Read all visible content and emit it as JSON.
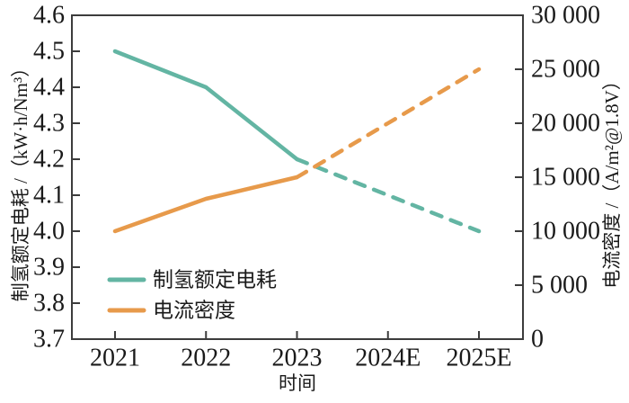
{
  "chart_data": {
    "type": "line",
    "title": "",
    "x_categories": [
      "2021",
      "2022",
      "2023",
      "2024E",
      "2025E"
    ],
    "xlabel": "时间",
    "ylabel_left": "制氢额定电耗 /（kW·h/Nm³）",
    "ylabel_right": "电流密度 /（A/m²@1.8V）",
    "ylim_left": [
      3.7,
      4.6
    ],
    "ylim_right": [
      0,
      30000
    ],
    "y_ticks_left": [
      "4.6",
      "4.5",
      "4.4",
      "4.3",
      "4.2",
      "4.1",
      "4.0",
      "3.9",
      "3.8",
      "3.7"
    ],
    "y_ticks_right": [
      "30 000",
      "25 000",
      "20 000",
      "15 000",
      "10 000",
      "5 000",
      "0"
    ],
    "grid": false,
    "legend_position": "lower-left",
    "series": [
      {
        "name": "制氢额定电耗",
        "axis": "left",
        "color": "#63b5a3",
        "values": [
          4.5,
          4.4,
          4.2,
          4.1,
          4.0
        ],
        "solid_until_index": 2
      },
      {
        "name": "电流密度",
        "axis": "right",
        "color": "#e79a4b",
        "values": [
          10000,
          13000,
          15000,
          20000,
          25000
        ],
        "solid_until_index": 2
      }
    ]
  }
}
